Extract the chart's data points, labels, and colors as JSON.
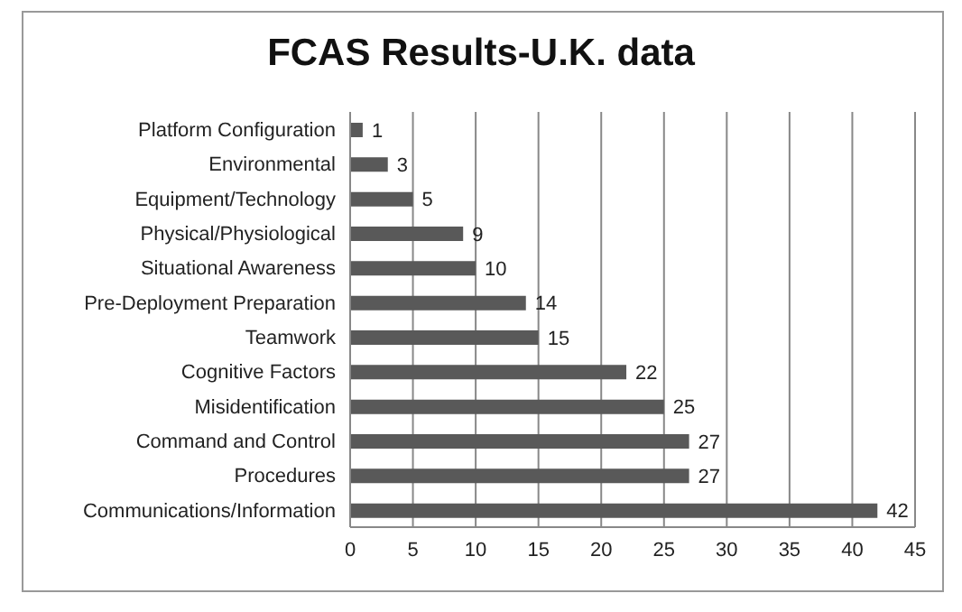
{
  "chart_data": {
    "type": "bar",
    "title": "FCAS Results-U.K. data",
    "orientation": "horizontal",
    "categories": [
      "Platform Configuration",
      "Environmental",
      "Equipment/Technology",
      "Physical/Physiological",
      "Situational Awareness",
      "Pre-Deployment Preparation",
      "Teamwork",
      "Cognitive Factors",
      "Misidentification",
      "Command and Control",
      "Procedures",
      "Communications/Information"
    ],
    "values": [
      1,
      3,
      5,
      9,
      10,
      14,
      15,
      22,
      25,
      27,
      27,
      42
    ],
    "color": "#595959",
    "xlim": [
      0,
      45
    ],
    "xticks": [
      0,
      5,
      10,
      15,
      20,
      25,
      30,
      35,
      40,
      45
    ],
    "grid": "x",
    "data_labels": true
  }
}
